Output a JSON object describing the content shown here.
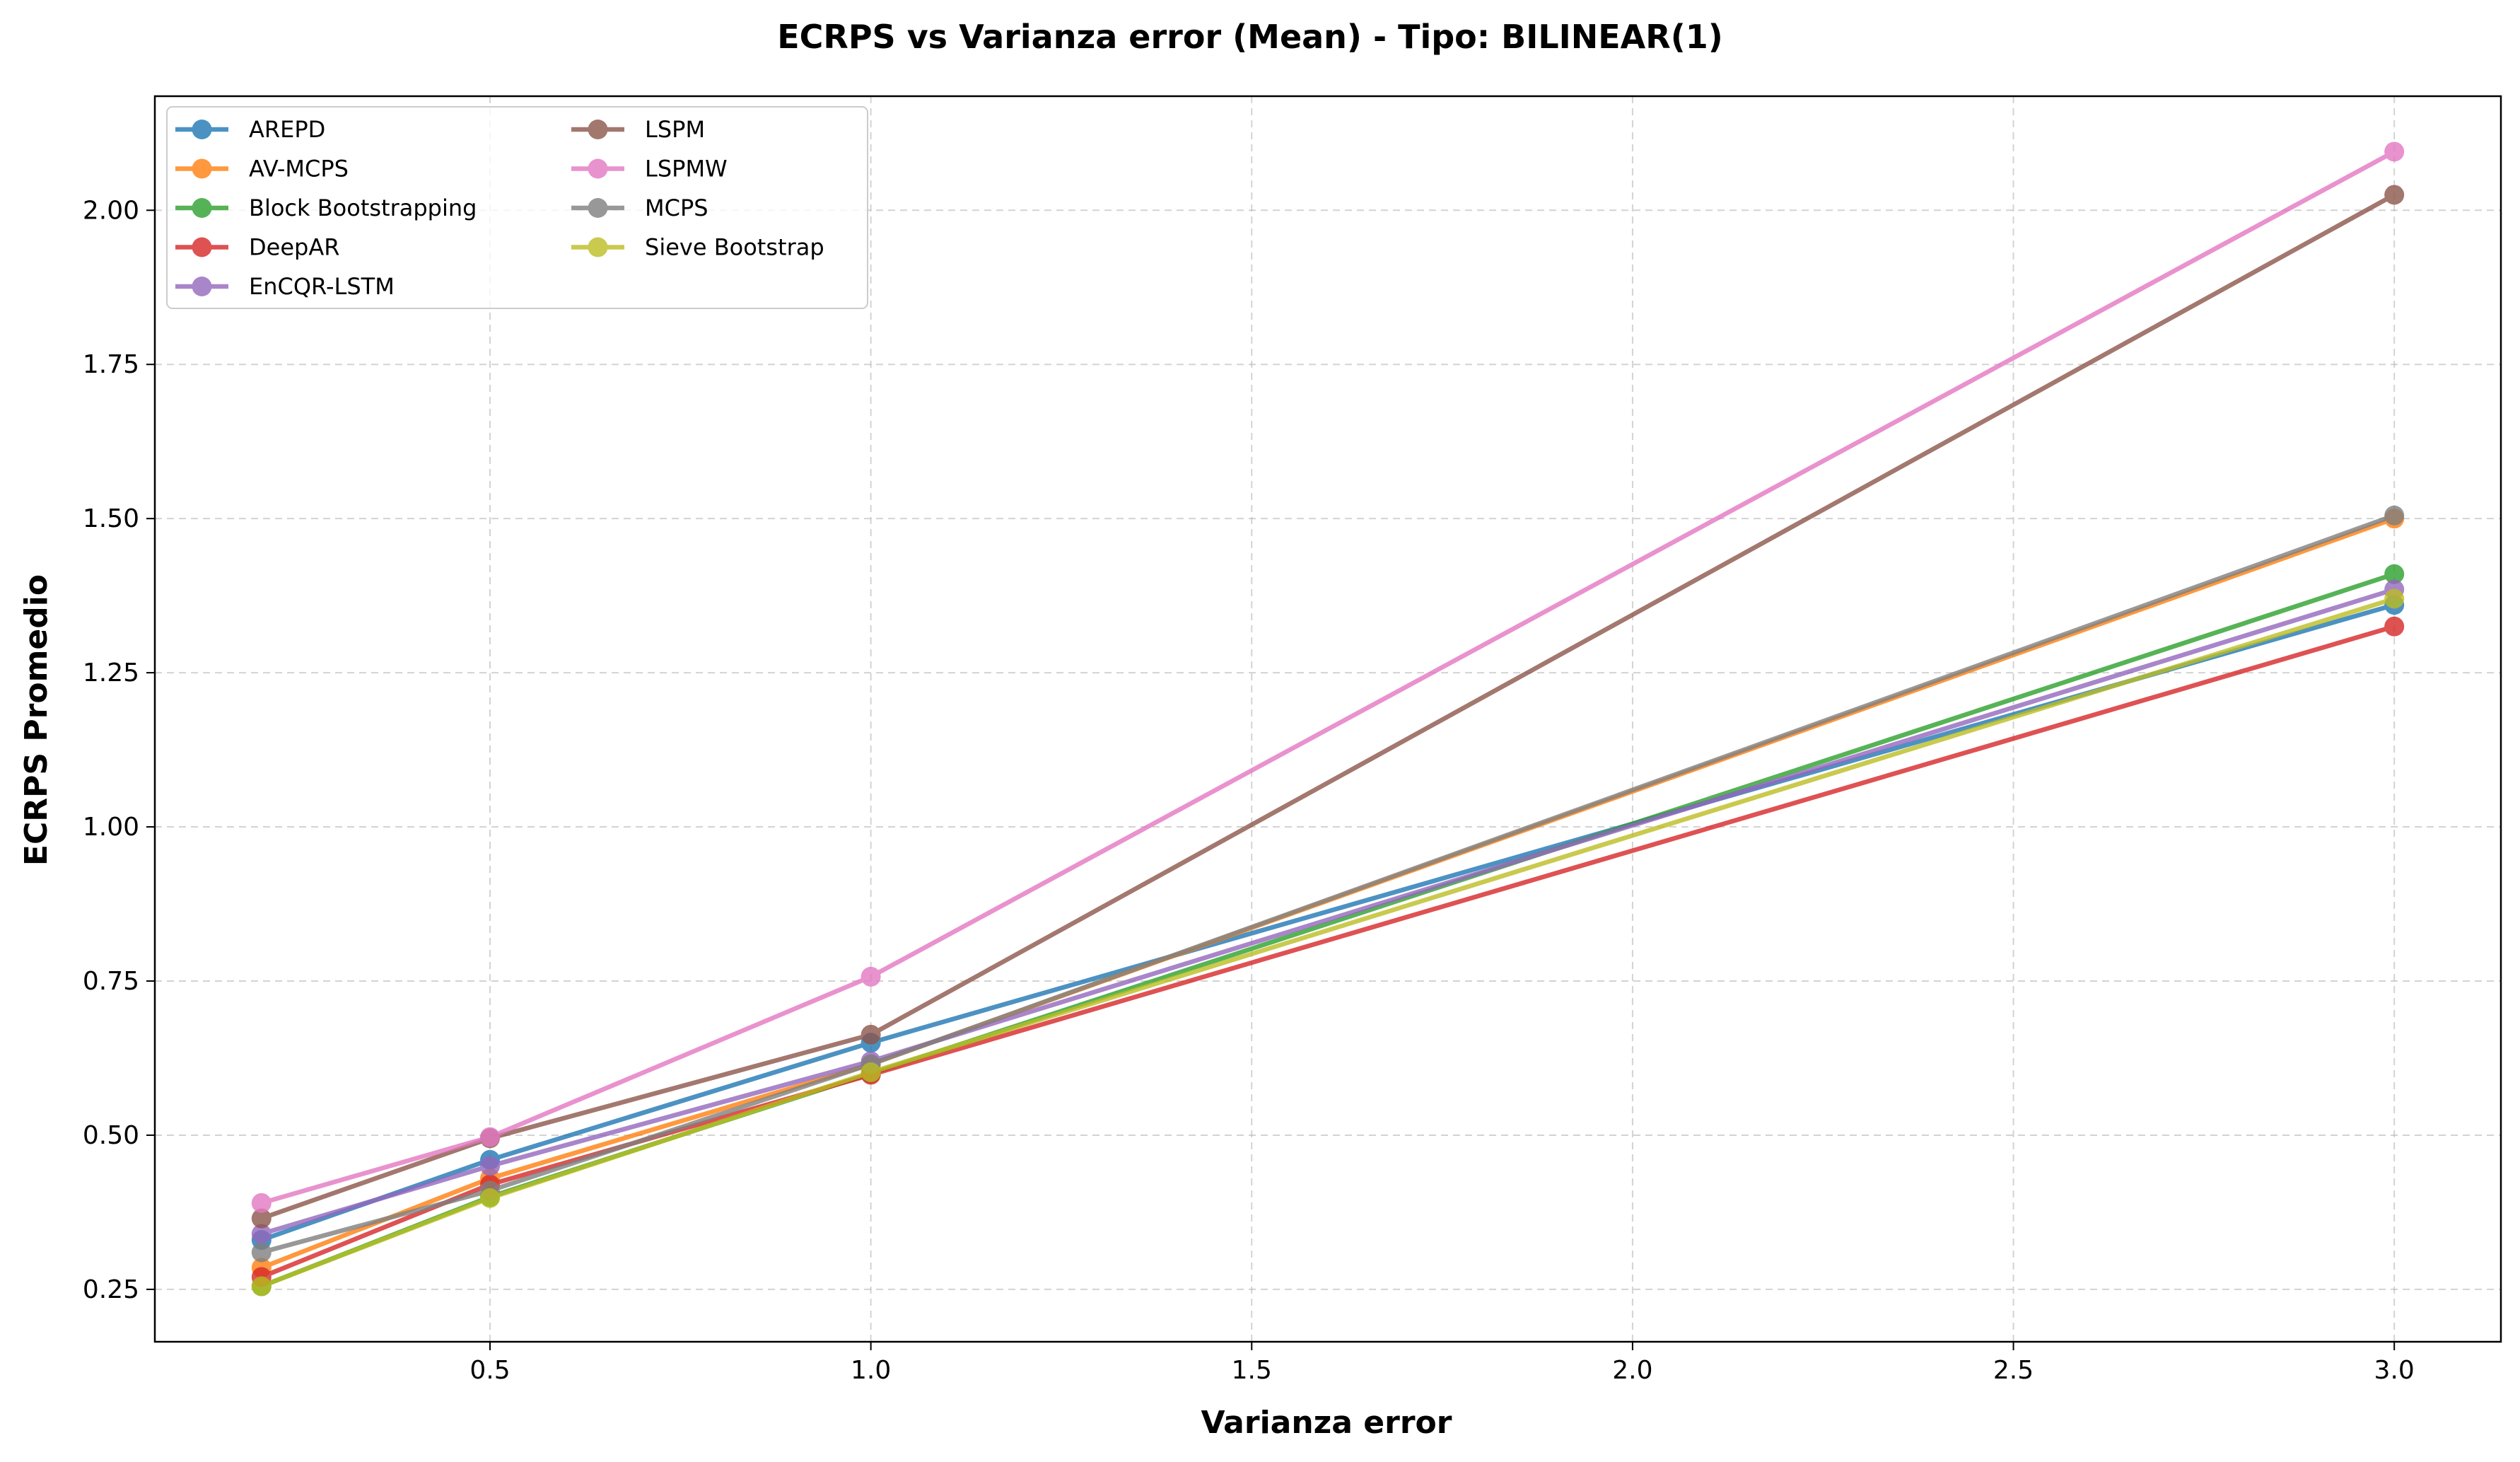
{
  "chart_data": {
    "type": "line",
    "title": "ECRPS vs Varianza error (Mean) - Tipo: BILINEAR(1)",
    "xlabel": "Varianza error",
    "ylabel": "ECRPS Promedio",
    "x": [
      0.2,
      0.5,
      1.0,
      3.0
    ],
    "xlim": [
      0.06,
      3.14
    ],
    "ylim": [
      0.165,
      2.185
    ],
    "xticks": [
      0.5,
      1.0,
      1.5,
      2.0,
      2.5,
      3.0
    ],
    "xtick_labels": [
      "0.5",
      "1.0",
      "1.5",
      "2.0",
      "2.5",
      "3.0"
    ],
    "yticks": [
      0.25,
      0.5,
      0.75,
      1.0,
      1.25,
      1.5,
      1.75,
      2.0
    ],
    "ytick_labels": [
      "0.25",
      "0.50",
      "0.75",
      "1.00",
      "1.25",
      "1.50",
      "1.75",
      "2.00"
    ],
    "grid": true,
    "legend_placement": "top-left",
    "legend_columns": 2,
    "series": [
      {
        "name": "AREPD",
        "color": "#1f77b4",
        "values": [
          0.33,
          0.46,
          0.65,
          1.36
        ]
      },
      {
        "name": "AV-MCPS",
        "color": "#ff7f0e",
        "values": [
          0.285,
          0.43,
          0.615,
          1.5
        ]
      },
      {
        "name": "Block Bootstrapping",
        "color": "#2ca02c",
        "values": [
          0.255,
          0.4,
          0.6,
          1.41
        ]
      },
      {
        "name": "DeepAR",
        "color": "#d62728",
        "values": [
          0.27,
          0.42,
          0.598,
          1.325
        ]
      },
      {
        "name": "EnCQR-LSTM",
        "color": "#9467bd",
        "values": [
          0.34,
          0.45,
          0.62,
          1.385
        ]
      },
      {
        "name": "LSPM",
        "color": "#8c564b",
        "values": [
          0.365,
          0.495,
          0.663,
          2.025
        ]
      },
      {
        "name": "LSPMW",
        "color": "#e377c2",
        "values": [
          0.39,
          0.497,
          0.757,
          2.095
        ]
      },
      {
        "name": "MCPS",
        "color": "#7f7f7f",
        "values": [
          0.31,
          0.41,
          0.615,
          1.505
        ]
      },
      {
        "name": "Sieve Bootstrap",
        "color": "#bcbd22",
        "values": [
          0.255,
          0.398,
          0.602,
          1.37
        ]
      }
    ]
  }
}
